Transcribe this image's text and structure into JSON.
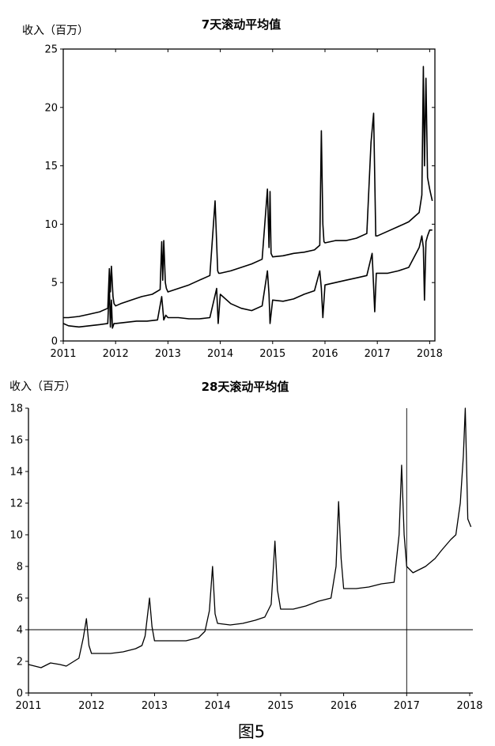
{
  "figure_caption": "图5",
  "chart_data": [
    {
      "type": "line",
      "title": "7天滚动平均值",
      "ylabel": "收入（百万）",
      "xlabel": "",
      "xlim": [
        2011,
        2018.1
      ],
      "ylim": [
        0,
        25
      ],
      "x_ticks": [
        "2011",
        "2012",
        "2013",
        "2014",
        "2015",
        "2016",
        "2017",
        "2018"
      ],
      "y_ticks": [
        "0",
        "5",
        "10",
        "15",
        "20",
        "25"
      ],
      "grid": false,
      "series": [
        {
          "x": [
            2011.0,
            2011.1,
            2011.3,
            2011.5,
            2011.7,
            2011.85,
            2011.88,
            2011.9,
            2011.92,
            2011.95,
            2011.97,
            2012.0,
            2012.1,
            2012.3,
            2012.5,
            2012.7,
            2012.85,
            2012.88,
            2012.9,
            2012.92,
            2012.95,
            2012.97,
            2013.0,
            2013.2,
            2013.4,
            2013.6,
            2013.8,
            2013.9,
            2013.95,
            2013.97,
            2014.0,
            2014.2,
            2014.4,
            2014.6,
            2014.8,
            2014.9,
            2014.93,
            2014.95,
            2014.97,
            2015.0,
            2015.2,
            2015.4,
            2015.6,
            2015.8,
            2015.9,
            2015.93,
            2015.96,
            2015.98,
            2016.0,
            2016.2,
            2016.4,
            2016.6,
            2016.8,
            2016.88,
            2016.93,
            2016.97,
            2017.0,
            2017.2,
            2017.4,
            2017.6,
            2017.8,
            2017.85,
            2017.88,
            2017.9,
            2017.93,
            2017.96,
            2018.0,
            2018.05
          ],
          "values": [
            2.0,
            2.0,
            2.1,
            2.3,
            2.5,
            2.8,
            6.2,
            4.2,
            6.4,
            3.8,
            3.2,
            3.0,
            3.2,
            3.5,
            3.8,
            4.0,
            4.4,
            8.5,
            5.2,
            8.6,
            5.0,
            4.5,
            4.2,
            4.5,
            4.8,
            5.2,
            5.6,
            12.0,
            6.0,
            5.8,
            5.8,
            6.0,
            6.3,
            6.6,
            7.0,
            13.0,
            8.0,
            12.8,
            7.5,
            7.2,
            7.3,
            7.5,
            7.6,
            7.8,
            8.2,
            18.0,
            10.0,
            8.5,
            8.4,
            8.6,
            8.6,
            8.8,
            9.2,
            17.0,
            19.5,
            9.0,
            9.0,
            9.4,
            9.8,
            10.2,
            11.0,
            12.5,
            23.5,
            15.0,
            22.5,
            14.0,
            13.0,
            12.0
          ]
        },
        {
          "x": [
            2011.0,
            2011.1,
            2011.3,
            2011.5,
            2011.7,
            2011.85,
            2011.88,
            2011.9,
            2011.92,
            2011.94,
            2011.97,
            2012.0,
            2012.2,
            2012.4,
            2012.6,
            2012.8,
            2012.88,
            2012.92,
            2012.96,
            2013.0,
            2013.2,
            2013.4,
            2013.6,
            2013.8,
            2013.93,
            2013.96,
            2014.0,
            2014.2,
            2014.4,
            2014.6,
            2014.8,
            2014.9,
            2014.93,
            2014.95,
            2015.0,
            2015.2,
            2015.4,
            2015.6,
            2015.8,
            2015.9,
            2015.93,
            2015.96,
            2016.0,
            2016.2,
            2016.4,
            2016.6,
            2016.8,
            2016.9,
            2016.95,
            2016.98,
            2017.0,
            2017.2,
            2017.4,
            2017.6,
            2017.8,
            2017.85,
            2017.88,
            2017.9,
            2017.93,
            2017.96,
            2018.0,
            2018.05
          ],
          "values": [
            1.5,
            1.3,
            1.2,
            1.3,
            1.4,
            1.5,
            4.8,
            1.2,
            3.5,
            1.1,
            1.5,
            1.5,
            1.6,
            1.7,
            1.7,
            1.8,
            3.8,
            1.8,
            2.2,
            2.0,
            2.0,
            1.9,
            1.9,
            2.0,
            4.5,
            1.5,
            4.0,
            3.2,
            2.8,
            2.6,
            3.0,
            6.0,
            4.0,
            1.5,
            3.5,
            3.4,
            3.6,
            4.0,
            4.3,
            6.0,
            4.5,
            2.0,
            4.8,
            5.0,
            5.2,
            5.4,
            5.6,
            7.5,
            2.5,
            5.8,
            5.8,
            5.8,
            6.0,
            6.3,
            8.0,
            9.0,
            8.0,
            3.5,
            8.5,
            9.0,
            9.5,
            9.5
          ]
        }
      ]
    },
    {
      "type": "line",
      "title": "28天滚动平均值",
      "ylabel": "收入（百万）",
      "xlabel": "",
      "xlim": [
        2011,
        2018.05
      ],
      "ylim": [
        0,
        18
      ],
      "x_ticks": [
        "2011",
        "2012",
        "2013",
        "2014",
        "2015",
        "2016",
        "2017",
        "2018"
      ],
      "y_ticks": [
        "0",
        "2",
        "4",
        "6",
        "8",
        "10",
        "12",
        "14",
        "16",
        "18"
      ],
      "grid": false,
      "reference_lines": {
        "y": 4,
        "x": 2017
      },
      "series": [
        {
          "x": [
            2011.0,
            2011.1,
            2011.2,
            2011.35,
            2011.5,
            2011.6,
            2011.72,
            2011.8,
            2011.87,
            2011.92,
            2011.96,
            2012.0,
            2012.1,
            2012.3,
            2012.5,
            2012.7,
            2012.8,
            2012.85,
            2012.92,
            2012.96,
            2013.0,
            2013.1,
            2013.3,
            2013.5,
            2013.7,
            2013.8,
            2013.87,
            2013.92,
            2013.96,
            2014.0,
            2014.2,
            2014.4,
            2014.6,
            2014.75,
            2014.85,
            2014.91,
            2014.95,
            2015.0,
            2015.2,
            2015.4,
            2015.6,
            2015.8,
            2015.88,
            2015.92,
            2015.96,
            2016.0,
            2016.2,
            2016.4,
            2016.6,
            2016.8,
            2016.88,
            2016.92,
            2016.96,
            2017.0,
            2017.1,
            2017.3,
            2017.45,
            2017.55,
            2017.7,
            2017.78,
            2017.85,
            2017.9,
            2017.93,
            2017.97,
            2018.02
          ],
          "values": [
            1.8,
            1.7,
            1.6,
            1.9,
            1.8,
            1.7,
            2.0,
            2.2,
            3.5,
            4.7,
            3.0,
            2.5,
            2.5,
            2.5,
            2.6,
            2.8,
            3.0,
            3.6,
            6.0,
            4.2,
            3.3,
            3.3,
            3.3,
            3.3,
            3.5,
            3.9,
            5.2,
            8.0,
            5.0,
            4.4,
            4.3,
            4.4,
            4.6,
            4.8,
            5.6,
            9.6,
            6.5,
            5.3,
            5.3,
            5.5,
            5.8,
            6.0,
            8.0,
            12.1,
            8.5,
            6.6,
            6.6,
            6.7,
            6.9,
            7.0,
            10.0,
            14.4,
            10.0,
            8.0,
            7.6,
            8.0,
            8.5,
            9.0,
            9.7,
            10.0,
            12.0,
            15.0,
            18.0,
            11.0,
            10.5
          ]
        }
      ]
    }
  ]
}
